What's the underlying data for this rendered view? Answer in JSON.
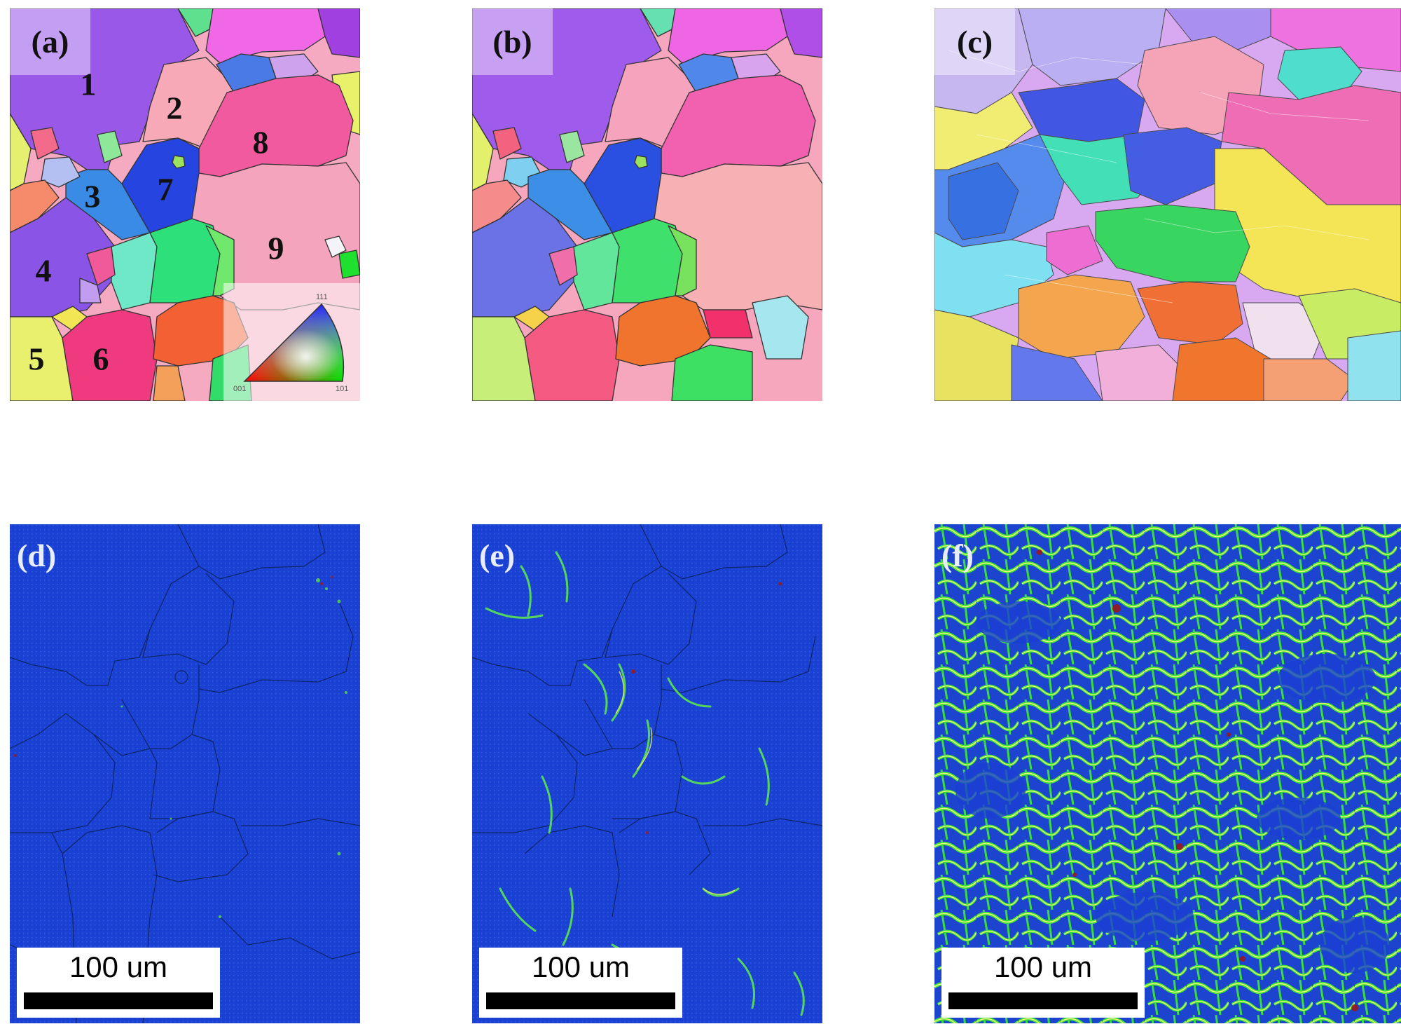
{
  "panels": [
    {
      "label": "(a)"
    },
    {
      "label": "(b)"
    },
    {
      "label": "(c)"
    },
    {
      "label": "(d)"
    },
    {
      "label": "(e)"
    },
    {
      "label": "(f)"
    }
  ],
  "grain_numbers": [
    "1",
    "2",
    "3",
    "4",
    "5",
    "6",
    "7",
    "8",
    "9"
  ],
  "ipf_legend": {
    "top": "111",
    "left": "001",
    "right": "101"
  },
  "scale_bar": {
    "label": "100 um"
  },
  "colors": {
    "kam_low": "#1a3fd2",
    "kam_mid": "#36d13a",
    "kam_high": "#f3f06a",
    "kam_max": "#9a1a1a"
  }
}
